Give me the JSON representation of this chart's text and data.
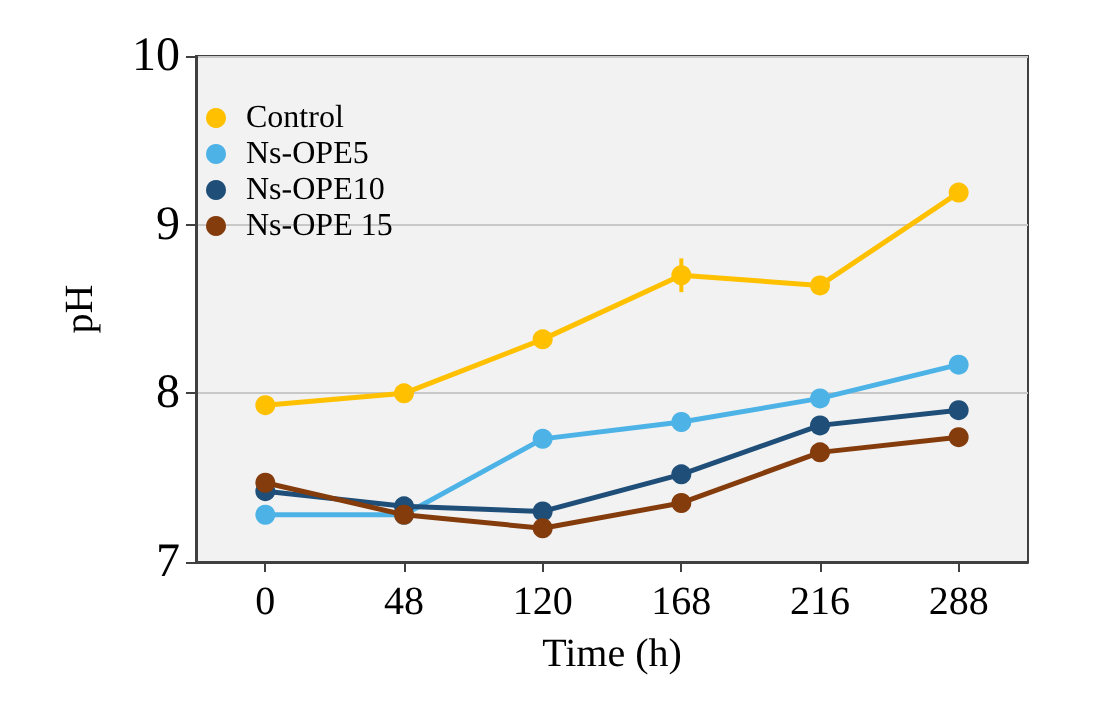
{
  "chart_data": {
    "type": "line",
    "xlabel": "Time (h)",
    "ylabel": "pH",
    "categories": [
      "0",
      "48",
      "120",
      "168",
      "216",
      "288"
    ],
    "ylim": [
      7,
      10
    ],
    "yticks": [
      7,
      8,
      9,
      10
    ],
    "grid": "y",
    "legend": "top left",
    "marker": "circle",
    "series": [
      {
        "name": "Control",
        "color": "#ffc000",
        "values": [
          7.93,
          8.0,
          8.32,
          8.7,
          8.64,
          9.19
        ],
        "errors": [
          null,
          null,
          null,
          0.1,
          null,
          null
        ]
      },
      {
        "name": "Ns-OPE5",
        "color": "#4db3e6",
        "values": [
          7.28,
          7.28,
          7.73,
          7.83,
          7.97,
          8.17
        ]
      },
      {
        "name": "Ns-OPE10",
        "color": "#1f4e79",
        "values": [
          7.42,
          7.33,
          7.3,
          7.52,
          7.81,
          7.9
        ]
      },
      {
        "name": "Ns-OPE 15",
        "color": "#843c0c",
        "values": [
          7.47,
          7.28,
          7.2,
          7.35,
          7.65,
          7.74
        ]
      }
    ]
  }
}
